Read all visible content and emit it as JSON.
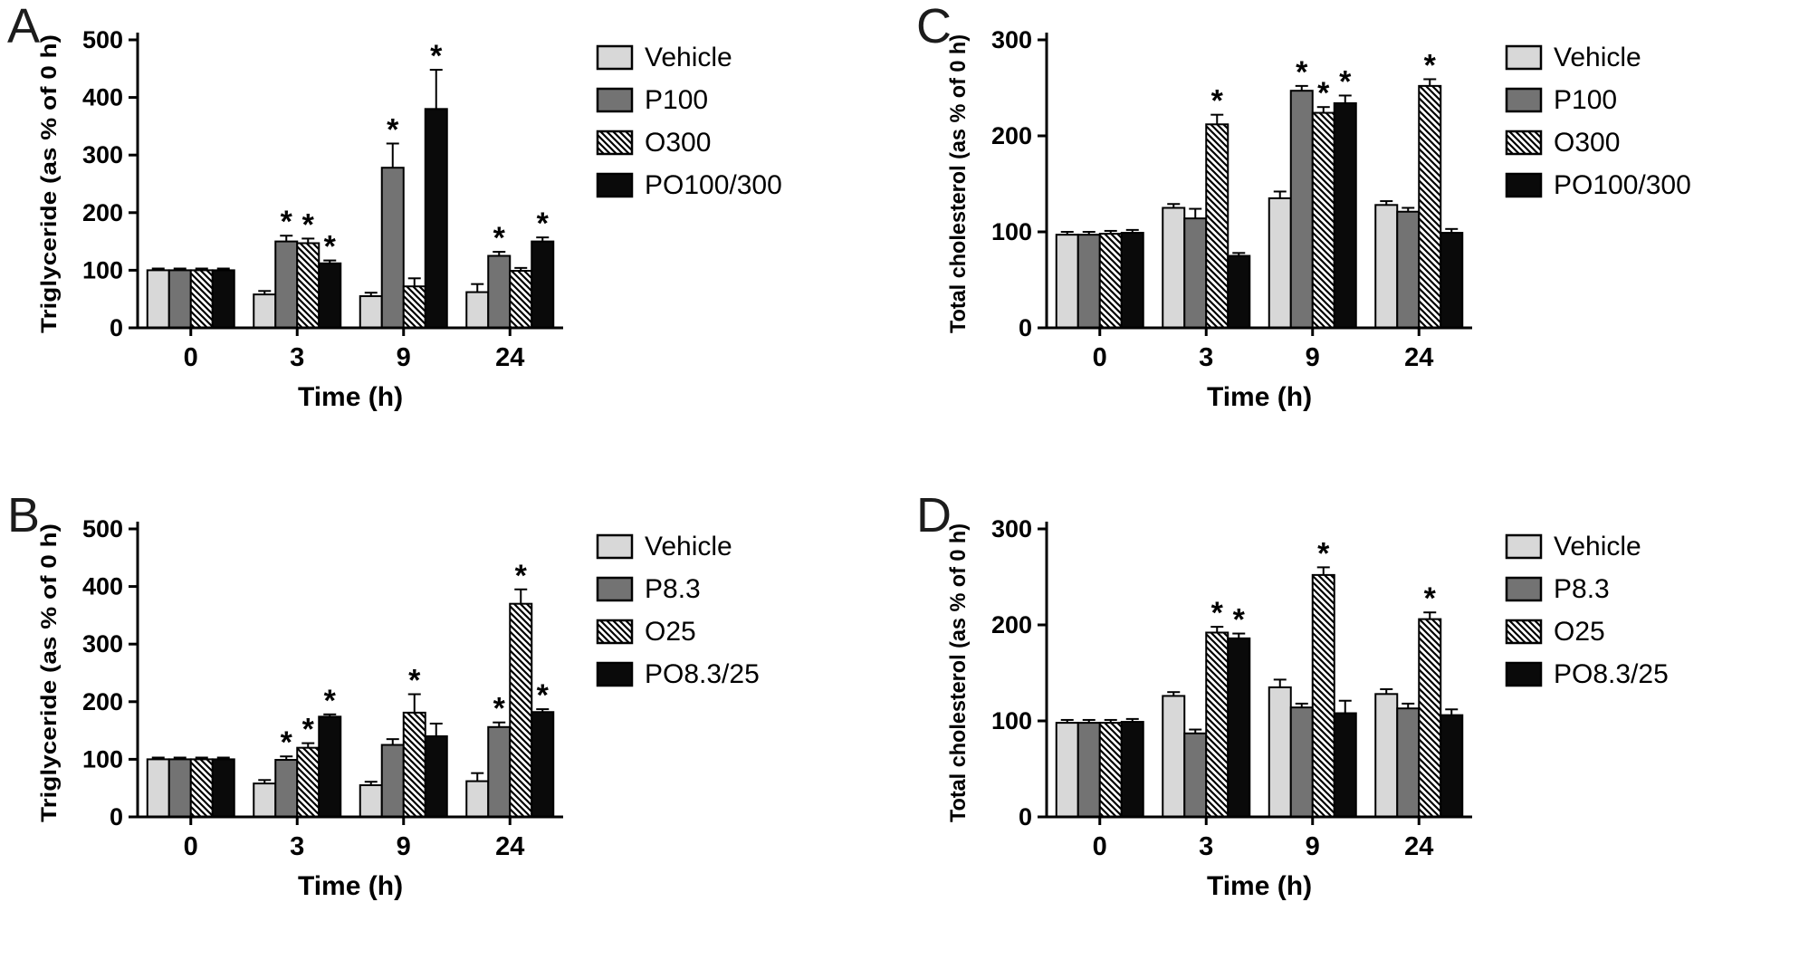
{
  "colors": {
    "light": "#d8d8d8",
    "gray": "#737373",
    "black": "#0a0a0a",
    "hatch_line": "#000000",
    "axis": "#000000"
  },
  "chart_data": [
    {
      "type": "bar",
      "panel_label": "A",
      "title": "",
      "xlabel": "Time (h)",
      "ylabel": "Triglyceride (as % of 0 h)",
      "ylim": [
        0,
        500
      ],
      "yticks": [
        0,
        100,
        200,
        300,
        400,
        500
      ],
      "categories": [
        "0",
        "3",
        "9",
        "24"
      ],
      "legend_position": "right",
      "grid": false,
      "error_bars": "upper",
      "significance_marker": "*",
      "series": [
        {
          "name": "Vehicle",
          "style": "light",
          "values": [
            100,
            58,
            55,
            62
          ],
          "errors": [
            3,
            6,
            6,
            14
          ],
          "significant": [
            false,
            false,
            false,
            false
          ]
        },
        {
          "name": "P100",
          "style": "gray",
          "values": [
            100,
            150,
            278,
            125
          ],
          "errors": [
            3,
            10,
            42,
            7
          ],
          "significant": [
            false,
            true,
            true,
            true
          ]
        },
        {
          "name": "O300",
          "style": "hatch",
          "values": [
            100,
            147,
            72,
            99
          ],
          "errors": [
            3,
            8,
            14,
            5
          ],
          "significant": [
            false,
            true,
            false,
            false
          ]
        },
        {
          "name": "PO100/300",
          "style": "black",
          "values": [
            100,
            112,
            380,
            150
          ],
          "errors": [
            3,
            5,
            68,
            7
          ],
          "significant": [
            false,
            true,
            true,
            true
          ]
        }
      ]
    },
    {
      "type": "bar",
      "panel_label": "B",
      "title": "",
      "xlabel": "Time (h)",
      "ylabel": "Triglyceride (as % of 0 h)",
      "ylim": [
        0,
        500
      ],
      "yticks": [
        0,
        100,
        200,
        300,
        400,
        500
      ],
      "categories": [
        "0",
        "3",
        "9",
        "24"
      ],
      "legend_position": "right",
      "grid": false,
      "error_bars": "upper",
      "significance_marker": "*",
      "series": [
        {
          "name": "Vehicle",
          "style": "light",
          "values": [
            100,
            58,
            55,
            62
          ],
          "errors": [
            3,
            6,
            6,
            14
          ],
          "significant": [
            false,
            false,
            false,
            false
          ]
        },
        {
          "name": "P8.3",
          "style": "gray",
          "values": [
            100,
            99,
            125,
            156
          ],
          "errors": [
            3,
            6,
            10,
            8
          ],
          "significant": [
            false,
            true,
            false,
            true
          ]
        },
        {
          "name": "O25",
          "style": "hatch",
          "values": [
            100,
            120,
            181,
            370
          ],
          "errors": [
            3,
            8,
            32,
            25
          ],
          "significant": [
            false,
            true,
            true,
            true
          ]
        },
        {
          "name": "PO8.3/25",
          "style": "black",
          "values": [
            100,
            174,
            140,
            182
          ],
          "errors": [
            3,
            4,
            22,
            5
          ],
          "significant": [
            false,
            true,
            false,
            true
          ]
        }
      ]
    },
    {
      "type": "bar",
      "panel_label": "C",
      "title": "",
      "xlabel": "Time (h)",
      "ylabel": "Total cholesterol (as % of 0 h)",
      "ylim": [
        0,
        300
      ],
      "yticks": [
        0,
        100,
        200,
        300
      ],
      "categories": [
        "0",
        "3",
        "9",
        "24"
      ],
      "legend_position": "right",
      "grid": false,
      "error_bars": "upper",
      "significance_marker": "*",
      "series": [
        {
          "name": "Vehicle",
          "style": "light",
          "values": [
            97,
            125,
            135,
            128
          ],
          "errors": [
            3,
            4,
            7,
            4
          ],
          "significant": [
            false,
            false,
            false,
            false
          ]
        },
        {
          "name": "P100",
          "style": "gray",
          "values": [
            97,
            114,
            247,
            121
          ],
          "errors": [
            3,
            10,
            5,
            4
          ],
          "significant": [
            false,
            false,
            true,
            false
          ]
        },
        {
          "name": "O300",
          "style": "hatch",
          "values": [
            98,
            212,
            224,
            252
          ],
          "errors": [
            3,
            10,
            6,
            7
          ],
          "significant": [
            false,
            true,
            true,
            true
          ]
        },
        {
          "name": "PO100/300",
          "style": "black",
          "values": [
            99,
            75,
            234,
            99
          ],
          "errors": [
            3,
            3,
            8,
            4
          ],
          "significant": [
            false,
            false,
            true,
            false
          ]
        }
      ]
    },
    {
      "type": "bar",
      "panel_label": "D",
      "title": "",
      "xlabel": "Time (h)",
      "ylabel": "Total cholesterol (as % of 0 h)",
      "ylim": [
        0,
        300
      ],
      "yticks": [
        0,
        100,
        200,
        300
      ],
      "categories": [
        "0",
        "3",
        "9",
        "24"
      ],
      "legend_position": "right",
      "grid": false,
      "error_bars": "upper",
      "significance_marker": "*",
      "series": [
        {
          "name": "Vehicle",
          "style": "light",
          "values": [
            98,
            126,
            135,
            128
          ],
          "errors": [
            3,
            4,
            8,
            5
          ],
          "significant": [
            false,
            false,
            false,
            false
          ]
        },
        {
          "name": "P8.3",
          "style": "gray",
          "values": [
            98,
            87,
            114,
            113
          ],
          "errors": [
            3,
            4,
            4,
            5
          ],
          "significant": [
            false,
            false,
            false,
            false
          ]
        },
        {
          "name": "O25",
          "style": "hatch",
          "values": [
            98,
            192,
            252,
            206
          ],
          "errors": [
            3,
            6,
            8,
            7
          ],
          "significant": [
            false,
            true,
            true,
            true
          ]
        },
        {
          "name": "PO8.3/25",
          "style": "black",
          "values": [
            99,
            186,
            108,
            106
          ],
          "errors": [
            3,
            5,
            13,
            6
          ],
          "significant": [
            false,
            true,
            false,
            false
          ]
        }
      ]
    }
  ]
}
